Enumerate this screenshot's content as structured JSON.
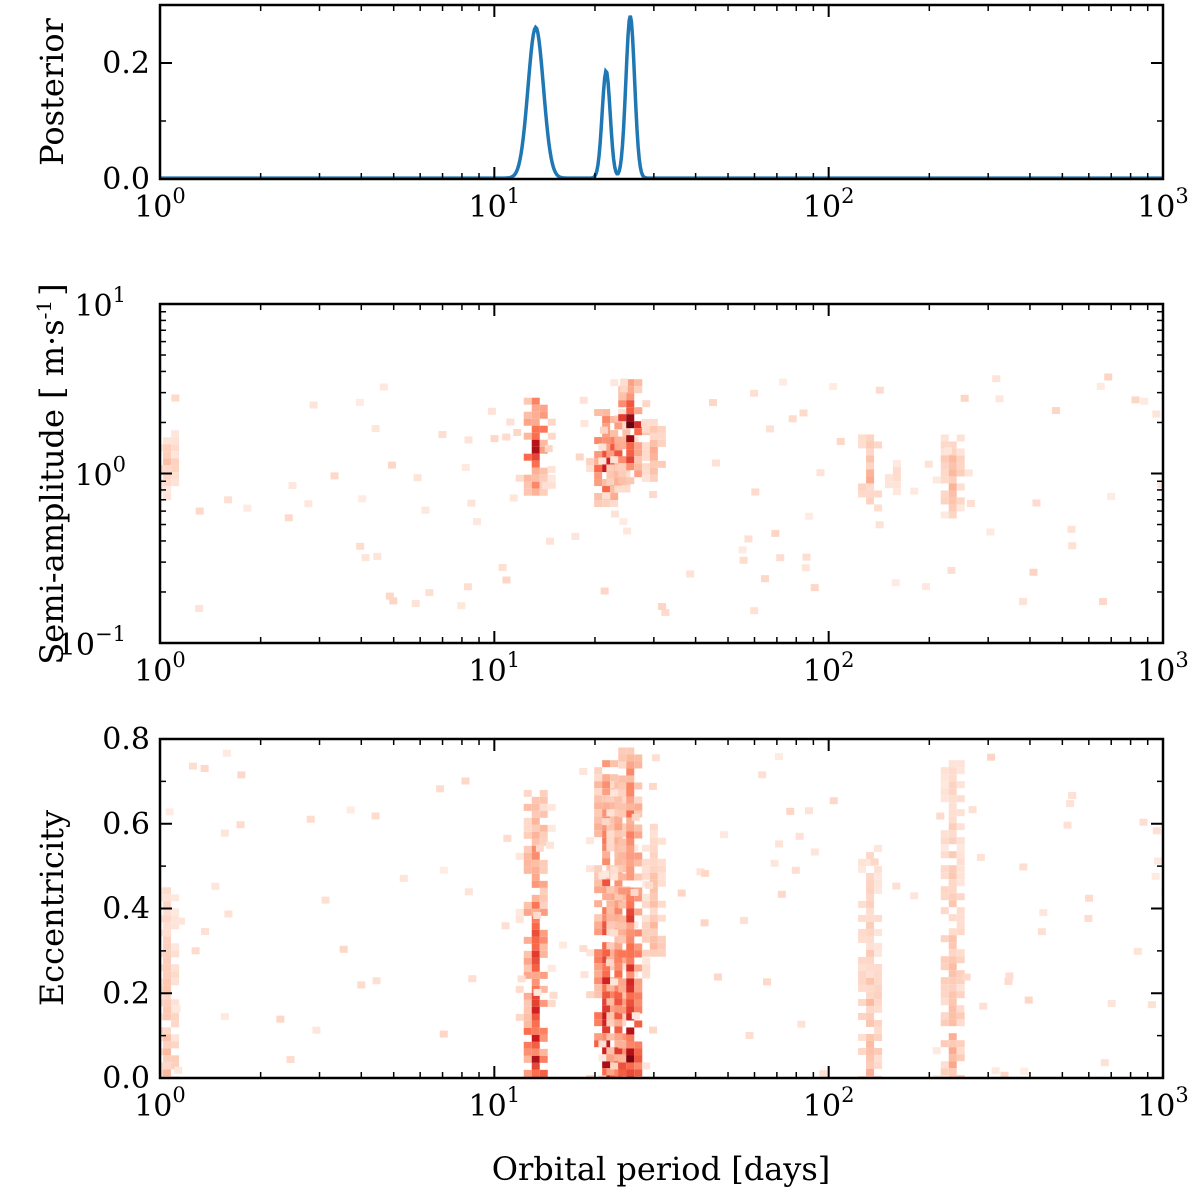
{
  "chart_data": [
    {
      "type": "line",
      "panel": "top",
      "title": "",
      "xlabel": "",
      "ylabel": "Posterior",
      "xscale": "log",
      "xlim": [
        1,
        1000
      ],
      "ylim": [
        0,
        0.3
      ],
      "xticks": [
        {
          "base": "10",
          "exp": "0"
        },
        {
          "base": "10",
          "exp": "1"
        },
        {
          "base": "10",
          "exp": "2"
        },
        {
          "base": "10",
          "exp": "3"
        }
      ],
      "yticks": [
        "0.0",
        "0.2"
      ],
      "ytick_values": [
        0,
        0.2
      ],
      "color": "#1f77b4",
      "peaks": [
        {
          "center": 13.3,
          "amplitude": 0.26,
          "width_log10": 0.023
        },
        {
          "center": 21.6,
          "amplitude": 0.185,
          "width_log10": 0.012
        },
        {
          "center": 25.5,
          "amplitude": 0.28,
          "width_log10": 0.013
        }
      ]
    },
    {
      "type": "heatmap",
      "panel": "middle",
      "xlabel": "",
      "ylabel": "Semi-amplitude [ m·s",
      "ylabel_sup": "-1",
      "ylabel_tail": "]",
      "xscale": "log",
      "yscale": "log",
      "xlim": [
        1,
        1000
      ],
      "ylim": [
        0.1,
        10
      ],
      "xticks": [
        {
          "base": "10",
          "exp": "0"
        },
        {
          "base": "10",
          "exp": "1"
        },
        {
          "base": "10",
          "exp": "2"
        },
        {
          "base": "10",
          "exp": "3"
        }
      ],
      "yticks": [
        {
          "base": "10",
          "exp": "−1"
        },
        {
          "base": "10",
          "exp": "0"
        },
        {
          "base": "10",
          "exp": "1"
        }
      ],
      "colormap": "Reds",
      "clusters": [
        {
          "period": 1.05,
          "k_min": 0.75,
          "k_max": 1.8,
          "intensity": 0.22
        },
        {
          "period": 13.3,
          "k_min": 0.8,
          "k_max": 2.8,
          "intensity": 0.9
        },
        {
          "period": 21.6,
          "k_min": 0.65,
          "k_max": 2.4,
          "intensity": 0.9
        },
        {
          "period": 23.5,
          "k_min": 0.8,
          "k_max": 2.2,
          "intensity": 0.55
        },
        {
          "period": 25.5,
          "k_min": 0.9,
          "k_max": 3.6,
          "intensity": 1.0
        },
        {
          "period": 30.0,
          "k_min": 0.9,
          "k_max": 2.1,
          "intensity": 0.35
        },
        {
          "period": 133,
          "k_min": 0.6,
          "k_max": 1.7,
          "intensity": 0.32
        },
        {
          "period": 235,
          "k_min": 0.55,
          "k_max": 1.7,
          "intensity": 0.35
        },
        {
          "period": 160,
          "k_min": 0.8,
          "k_max": 1.2,
          "intensity": 0.15
        }
      ]
    },
    {
      "type": "heatmap",
      "panel": "bottom",
      "xlabel": "Orbital period [days]",
      "ylabel": "Eccentricity",
      "xscale": "log",
      "xlim": [
        1,
        1000
      ],
      "ylim": [
        0,
        0.8
      ],
      "xticks": [
        {
          "base": "10",
          "exp": "0"
        },
        {
          "base": "10",
          "exp": "1"
        },
        {
          "base": "10",
          "exp": "2"
        },
        {
          "base": "10",
          "exp": "3"
        }
      ],
      "yticks": [
        "0.0",
        "0.2",
        "0.4",
        "0.6",
        "0.8"
      ],
      "ytick_values": [
        0,
        0.2,
        0.4,
        0.6,
        0.8
      ],
      "colormap": "Reds",
      "clusters": [
        {
          "period": 1.05,
          "e_min": 0.0,
          "e_max": 0.45,
          "intensity": 0.3
        },
        {
          "period": 13.3,
          "e_min": 0.0,
          "e_max": 0.68,
          "intensity": 0.9
        },
        {
          "period": 21.6,
          "e_min": 0.0,
          "e_max": 0.75,
          "intensity": 0.95
        },
        {
          "period": 23.5,
          "e_min": 0.0,
          "e_max": 0.7,
          "intensity": 0.7
        },
        {
          "period": 25.5,
          "e_min": 0.0,
          "e_max": 0.78,
          "intensity": 1.0
        },
        {
          "period": 30.0,
          "e_min": 0.3,
          "e_max": 0.6,
          "intensity": 0.35
        },
        {
          "period": 133,
          "e_min": 0.0,
          "e_max": 0.55,
          "intensity": 0.32
        },
        {
          "period": 235,
          "e_min": 0.0,
          "e_max": 0.75,
          "intensity": 0.35
        }
      ]
    }
  ]
}
